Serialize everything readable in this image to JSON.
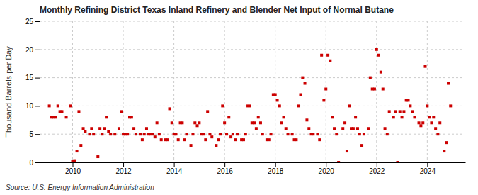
{
  "chart_data": {
    "type": "scatter",
    "title": "Monthly Refining District Texas Inland Refinery and Blender Net Input of Normal Butane",
    "ylabel": "Thousand Barrels per Day",
    "source": "Source: U.S. Energy Information Administration",
    "color": "#cc0000",
    "marker": "square",
    "grid": true,
    "xlim": [
      2008.7,
      2025.5
    ],
    "ylim": [
      0,
      25
    ],
    "xticks": [
      2010,
      2012,
      2014,
      2016,
      2018,
      2020,
      2022,
      2024
    ],
    "yticks": [
      0,
      5,
      10,
      15,
      20,
      25
    ],
    "x": [
      2009.08,
      2009.17,
      2009.25,
      2009.33,
      2009.42,
      2009.5,
      2009.58,
      2009.75,
      2009.92,
      2010.0,
      2010.08,
      2010.17,
      2010.25,
      2010.33,
      2010.42,
      2010.5,
      2010.67,
      2010.75,
      2010.83,
      2011.0,
      2011.08,
      2011.17,
      2011.25,
      2011.33,
      2011.42,
      2011.5,
      2011.67,
      2011.83,
      2011.92,
      2012.0,
      2012.08,
      2012.17,
      2012.25,
      2012.33,
      2012.42,
      2012.5,
      2012.67,
      2012.75,
      2012.83,
      2012.92,
      2013.0,
      2013.08,
      2013.17,
      2013.25,
      2013.33,
      2013.42,
      2013.5,
      2013.67,
      2013.75,
      2013.83,
      2013.92,
      2014.0,
      2014.08,
      2014.17,
      2014.25,
      2014.33,
      2014.42,
      2014.5,
      2014.67,
      2014.75,
      2014.83,
      2014.92,
      2015.0,
      2015.08,
      2015.17,
      2015.25,
      2015.33,
      2015.42,
      2015.5,
      2015.67,
      2015.75,
      2015.83,
      2015.92,
      2016.0,
      2016.08,
      2016.17,
      2016.25,
      2016.33,
      2016.42,
      2016.5,
      2016.67,
      2016.75,
      2016.83,
      2016.92,
      2017.0,
      2017.08,
      2017.17,
      2017.25,
      2017.33,
      2017.42,
      2017.5,
      2017.67,
      2017.75,
      2017.83,
      2017.92,
      2018.0,
      2018.08,
      2018.17,
      2018.25,
      2018.33,
      2018.42,
      2018.5,
      2018.67,
      2018.75,
      2018.83,
      2018.92,
      2019.0,
      2019.08,
      2019.17,
      2019.25,
      2019.33,
      2019.42,
      2019.5,
      2019.67,
      2019.75,
      2019.83,
      2019.92,
      2020.0,
      2020.08,
      2020.17,
      2020.25,
      2020.33,
      2020.42,
      2020.5,
      2020.67,
      2020.75,
      2020.83,
      2020.92,
      2021.0,
      2021.08,
      2021.17,
      2021.25,
      2021.33,
      2021.42,
      2021.5,
      2021.67,
      2021.75,
      2021.83,
      2021.92,
      2022.0,
      2022.08,
      2022.17,
      2022.25,
      2022.33,
      2022.42,
      2022.5,
      2022.67,
      2022.75,
      2022.83,
      2022.92,
      2023.0,
      2023.08,
      2023.17,
      2023.25,
      2023.33,
      2023.42,
      2023.5,
      2023.67,
      2023.75,
      2023.83,
      2023.92,
      2024.0,
      2024.08,
      2024.17,
      2024.25,
      2024.33,
      2024.42,
      2024.5,
      2024.67,
      2024.75,
      2024.83,
      2024.92
    ],
    "values": [
      10.0,
      8.0,
      8.0,
      8.0,
      10.0,
      9.0,
      9.0,
      8.0,
      10.0,
      0.2,
      0.3,
      2.0,
      9.0,
      3.0,
      6.0,
      5.5,
      5.0,
      6.0,
      5.0,
      1.0,
      6.0,
      5.0,
      6.0,
      8.0,
      5.5,
      5.0,
      5.0,
      6.0,
      9.0,
      5.0,
      5.0,
      5.0,
      8.0,
      8.0,
      6.0,
      5.0,
      5.0,
      4.0,
      5.0,
      6.0,
      5.0,
      5.0,
      5.0,
      4.5,
      7.0,
      5.0,
      4.0,
      4.0,
      4.0,
      9.5,
      7.0,
      5.0,
      5.0,
      4.0,
      7.0,
      7.0,
      4.0,
      5.0,
      3.0,
      5.0,
      7.0,
      6.5,
      7.0,
      5.0,
      5.0,
      4.0,
      9.0,
      5.0,
      4.5,
      3.0,
      4.0,
      5.0,
      10.0,
      7.0,
      5.0,
      8.0,
      4.5,
      5.0,
      4.0,
      5.0,
      4.0,
      4.0,
      5.0,
      10.0,
      10.0,
      7.0,
      7.0,
      6.0,
      8.0,
      7.0,
      5.0,
      4.0,
      4.0,
      5.0,
      12.0,
      12.0,
      11.0,
      10.0,
      7.0,
      8.0,
      6.0,
      5.0,
      5.0,
      4.0,
      4.0,
      10.0,
      12.0,
      15.0,
      14.0,
      7.5,
      6.0,
      5.0,
      5.0,
      5.0,
      4.0,
      19.0,
      11.0,
      13.0,
      19.0,
      18.0,
      8.0,
      6.0,
      5.0,
      0.0,
      6.0,
      7.0,
      2.0,
      10.0,
      6.0,
      6.0,
      8.0,
      6.0,
      5.0,
      3.0,
      5.0,
      6.0,
      15.0,
      13.0,
      13.0,
      20.0,
      19.0,
      16.0,
      13.0,
      6.0,
      5.0,
      9.0,
      8.0,
      9.0,
      0.0,
      9.0,
      8.0,
      9.0,
      11.0,
      11.0,
      10.0,
      9.0,
      8.0,
      7.0,
      6.5,
      7.0,
      17.0,
      10.0,
      8.0,
      7.0,
      8.0,
      6.0,
      5.0,
      7.0,
      2.0,
      3.5,
      14.0,
      10.0
    ]
  }
}
